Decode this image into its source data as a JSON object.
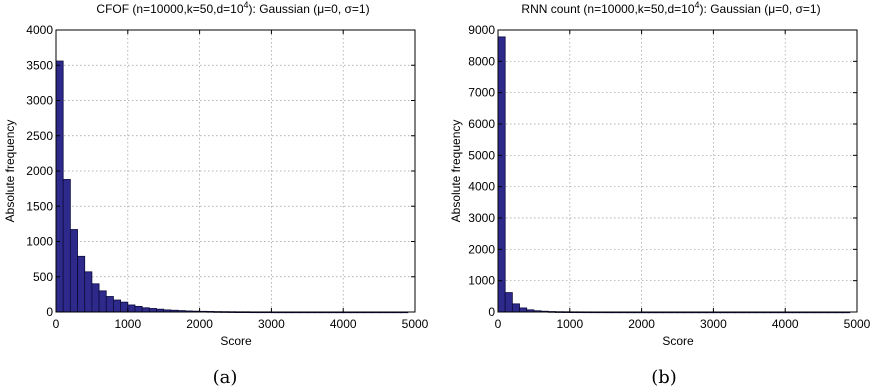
{
  "chart_data": [
    {
      "type": "bar",
      "title": "CFOF (n=10000,k=50,d=10",
      "title_exp": "4",
      "title_tail": "): Gaussian (μ=0, σ=1)",
      "xlabel": "Score",
      "ylabel": "Absolute frequency",
      "xlim": [
        0,
        5000
      ],
      "ylim": [
        0,
        4000
      ],
      "xticks": [
        0,
        1000,
        2000,
        3000,
        4000,
        5000
      ],
      "yticks": [
        0,
        500,
        1000,
        1500,
        2000,
        2500,
        3000,
        3500,
        4000
      ],
      "bin_width": 100,
      "bin_starts": [
        0,
        100,
        200,
        300,
        400,
        500,
        600,
        700,
        800,
        900,
        1000,
        1100,
        1200,
        1300,
        1400,
        1500,
        1600,
        1700,
        1800,
        1900,
        2000,
        2100,
        2200,
        2300,
        2400,
        2500,
        2600,
        2700,
        2800,
        2900,
        3000,
        3100,
        3200,
        3300,
        3400,
        3500,
        3600,
        3700,
        3800,
        3900,
        4000,
        4100,
        4200,
        4300,
        4400,
        4500,
        4600,
        4700,
        4800
      ],
      "values": [
        3560,
        1880,
        1170,
        790,
        570,
        400,
        300,
        220,
        170,
        140,
        100,
        80,
        60,
        50,
        40,
        30,
        25,
        20,
        15,
        12,
        10,
        8,
        6,
        5,
        4,
        3,
        3,
        2,
        2,
        2,
        1,
        1,
        1,
        1,
        1,
        1,
        1,
        1,
        1,
        1,
        1,
        1,
        1,
        1,
        1,
        1,
        1,
        1,
        1
      ],
      "grid": true,
      "caption": "(a)"
    },
    {
      "type": "bar",
      "title": "RNN count (n=10000,k=50,d=10",
      "title_exp": "4",
      "title_tail": "): Gaussian (μ=0, σ=1)",
      "xlabel": "Score",
      "ylabel": "Absolute frequency",
      "xlim": [
        0,
        5000
      ],
      "ylim": [
        0,
        9000
      ],
      "xticks": [
        0,
        1000,
        2000,
        3000,
        4000,
        5000
      ],
      "yticks": [
        0,
        1000,
        2000,
        3000,
        4000,
        5000,
        6000,
        7000,
        8000,
        9000
      ],
      "bin_width": 100,
      "bin_starts": [
        0,
        100,
        200,
        300,
        400,
        500,
        600,
        700,
        800,
        900,
        1000,
        1100,
        1200,
        1300,
        1400,
        1500,
        1600,
        1700,
        1800,
        1900,
        2000,
        2100,
        2200,
        2300,
        2400,
        2500,
        2600,
        2700,
        2800,
        2900,
        3000,
        3100,
        3200,
        3300,
        3400,
        3500,
        3600,
        3700,
        3800,
        3900,
        4000,
        4100,
        4200,
        4300,
        4400,
        4500,
        4600,
        4700,
        4800
      ],
      "values": [
        8780,
        620,
        260,
        130,
        70,
        40,
        25,
        15,
        10,
        8,
        6,
        5,
        4,
        3,
        3,
        2,
        2,
        2,
        1,
        1,
        1,
        1,
        1,
        1,
        1,
        1,
        1,
        1,
        1,
        1,
        1,
        1,
        1,
        1,
        1,
        1,
        1,
        1,
        1,
        1,
        1,
        1,
        1,
        1,
        1,
        1,
        1,
        1,
        1
      ],
      "grid": true,
      "caption": "(b)"
    }
  ]
}
